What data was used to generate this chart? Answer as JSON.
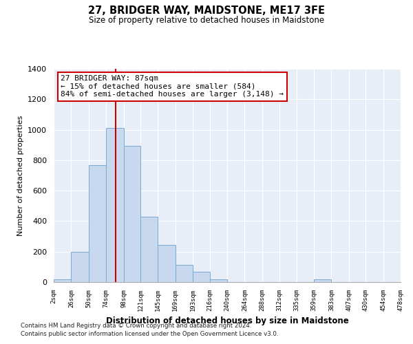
{
  "title": "27, BRIDGER WAY, MAIDSTONE, ME17 3FE",
  "subtitle": "Size of property relative to detached houses in Maidstone",
  "xlabel": "Distribution of detached houses by size in Maidstone",
  "ylabel": "Number of detached properties",
  "bar_edges": [
    2,
    26,
    50,
    74,
    98,
    121,
    145,
    169,
    193,
    216,
    240,
    264,
    288,
    312,
    335,
    359,
    383,
    407,
    430,
    454,
    478
  ],
  "bar_heights": [
    20,
    200,
    770,
    1010,
    895,
    430,
    243,
    113,
    68,
    20,
    0,
    0,
    0,
    0,
    0,
    20,
    0,
    0,
    0,
    0
  ],
  "tick_labels": [
    "2sqm",
    "26sqm",
    "50sqm",
    "74sqm",
    "98sqm",
    "121sqm",
    "145sqm",
    "169sqm",
    "193sqm",
    "216sqm",
    "240sqm",
    "264sqm",
    "288sqm",
    "312sqm",
    "335sqm",
    "359sqm",
    "383sqm",
    "407sqm",
    "430sqm",
    "454sqm",
    "478sqm"
  ],
  "bar_color": "#c8d8ee",
  "bar_edge_color": "#7aaad0",
  "vline_x": 87,
  "vline_color": "#cc0000",
  "ylim": [
    0,
    1400
  ],
  "yticks": [
    0,
    200,
    400,
    600,
    800,
    1000,
    1200,
    1400
  ],
  "annotation_title": "27 BRIDGER WAY: 87sqm",
  "annotation_line1": "← 15% of detached houses are smaller (584)",
  "annotation_line2": "84% of semi-detached houses are larger (3,148) →",
  "footnote1": "Contains HM Land Registry data © Crown copyright and database right 2024.",
  "footnote2": "Contains public sector information licensed under the Open Government Licence v3.0.",
  "background_color": "#ffffff",
  "plot_bg_color": "#e8eef8"
}
